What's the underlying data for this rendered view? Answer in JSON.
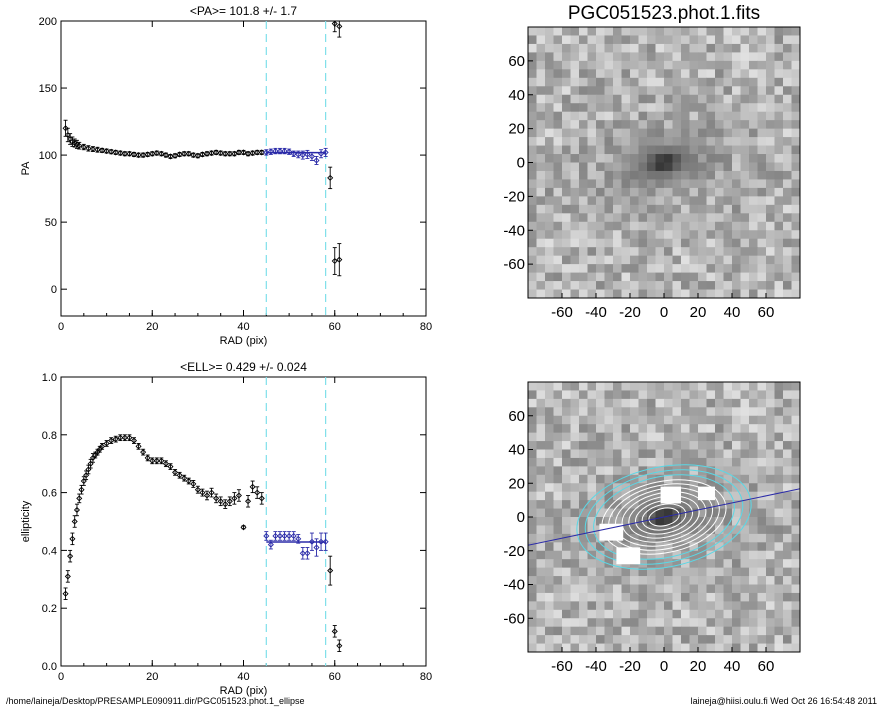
{
  "chart_data": [
    {
      "type": "scatter",
      "title": "<PA>= 101.8 +/-   1.7",
      "xlabel": "RAD (pix)",
      "ylabel": "PA",
      "xlim": [
        0,
        80
      ],
      "ylim": [
        -20,
        200
      ],
      "xticks": [
        0,
        20,
        40,
        60,
        80
      ],
      "yticks": [
        0,
        50,
        100,
        150,
        200
      ],
      "vlines": [
        45,
        58
      ],
      "fit": {
        "x0": 45,
        "x1": 58,
        "y": 101.8
      },
      "series": [
        {
          "color": "#000000",
          "x": [
            1,
            1.5,
            2,
            2.5,
            3,
            3.5,
            4,
            5,
            6,
            7,
            8,
            9,
            10,
            11,
            12,
            13,
            14,
            15,
            16,
            17,
            18,
            19,
            20,
            21,
            22,
            23,
            24,
            25,
            26,
            27,
            28,
            29,
            30,
            31,
            32,
            33,
            34,
            35,
            36,
            37,
            38,
            39,
            40,
            41,
            42,
            43,
            44
          ],
          "y": [
            120,
            115,
            112,
            110,
            109,
            108,
            107,
            106,
            105,
            104.5,
            104,
            103.5,
            103,
            102.5,
            102,
            101.5,
            101,
            101,
            100.5,
            100,
            100,
            100.5,
            101,
            101.5,
            101,
            100,
            99,
            99.5,
            100.5,
            101,
            101,
            100,
            99.5,
            100.5,
            101,
            101.5,
            102,
            101.5,
            101,
            101,
            101,
            102,
            102,
            101,
            101.5,
            102,
            102
          ],
          "err": [
            6,
            5,
            4,
            3.5,
            3,
            3,
            2.5,
            2,
            2,
            1.8,
            1.8,
            1.5,
            1.5,
            1.5,
            1.5,
            1.5,
            1.5,
            1.5,
            1.5,
            1.5,
            1.5,
            1.5,
            1.5,
            1.5,
            1.5,
            1.5,
            1.5,
            1.5,
            1.5,
            1.5,
            1.5,
            1.5,
            1.5,
            1.5,
            1.5,
            1.5,
            1.5,
            1.5,
            1.5,
            1.5,
            1.5,
            1.5,
            1.5,
            1.5,
            1.5,
            1.5,
            1.5
          ]
        },
        {
          "color": "#2a2aa8",
          "x": [
            45,
            46,
            47,
            48,
            49,
            50,
            51,
            52,
            53,
            54,
            55,
            56,
            57,
            58
          ],
          "y": [
            102,
            102.5,
            103,
            103,
            103,
            102.5,
            101,
            100.5,
            100,
            100.5,
            99,
            96,
            101,
            102
          ],
          "err": [
            2,
            2,
            2,
            2,
            2,
            2,
            2,
            2.5,
            3,
            3,
            3,
            3,
            3,
            3
          ]
        },
        {
          "color": "#000000",
          "x": [
            59,
            60,
            61
          ],
          "y": [
            83,
            21,
            22
          ],
          "err": [
            8,
            10,
            12
          ]
        },
        {
          "color": "#000000",
          "x": [
            60,
            61
          ],
          "y": [
            198,
            196
          ],
          "err": [
            6,
            8
          ]
        }
      ]
    },
    {
      "type": "image",
      "title": "PGC051523.phot.1.fits",
      "xlim": [
        -80,
        80
      ],
      "ylim": [
        -80,
        80
      ],
      "xticks": [
        -60,
        -40,
        -20,
        0,
        20,
        40,
        60
      ],
      "yticks": [
        -60,
        -40,
        -20,
        0,
        20,
        40,
        60
      ],
      "galaxy": {
        "pa_deg": 101.8,
        "ell": 0.429,
        "semimajor": 45
      }
    },
    {
      "type": "scatter",
      "title": "<ELL>= 0.429 +/-  0.024",
      "xlabel": "RAD (pix)",
      "ylabel": "ellipticity",
      "xlim": [
        0,
        80
      ],
      "ylim": [
        0,
        1
      ],
      "xticks": [
        0,
        20,
        40,
        60,
        80
      ],
      "yticks": [
        0.0,
        0.2,
        0.4,
        0.6,
        0.8,
        1.0
      ],
      "vlines": [
        45,
        58
      ],
      "fit": {
        "x0": 45,
        "x1": 58,
        "y": 0.429
      },
      "series": [
        {
          "color": "#000000",
          "x": [
            1,
            1.5,
            2,
            2.5,
            3,
            3.5,
            4,
            4.5,
            5,
            5.5,
            6,
            6.5,
            7,
            7.5,
            8,
            8.5,
            9,
            10,
            11,
            12,
            13,
            14,
            15,
            16,
            17,
            18,
            19,
            20,
            21,
            22,
            23,
            24,
            25,
            26,
            27,
            28,
            29,
            30,
            31,
            32,
            33,
            34,
            35,
            36,
            37,
            38,
            39,
            40,
            41,
            42,
            43,
            44
          ],
          "y": [
            0.25,
            0.31,
            0.38,
            0.44,
            0.5,
            0.54,
            0.58,
            0.61,
            0.64,
            0.66,
            0.68,
            0.7,
            0.72,
            0.73,
            0.74,
            0.75,
            0.76,
            0.77,
            0.78,
            0.785,
            0.79,
            0.79,
            0.79,
            0.78,
            0.76,
            0.74,
            0.72,
            0.71,
            0.71,
            0.71,
            0.7,
            0.69,
            0.67,
            0.66,
            0.65,
            0.64,
            0.63,
            0.61,
            0.6,
            0.59,
            0.6,
            0.58,
            0.57,
            0.56,
            0.57,
            0.58,
            0.59,
            0.48,
            0.57,
            0.62,
            0.6,
            0.58
          ],
          "err": [
            0.02,
            0.02,
            0.02,
            0.02,
            0.02,
            0.02,
            0.015,
            0.015,
            0.015,
            0.015,
            0.015,
            0.015,
            0.015,
            0.01,
            0.01,
            0.01,
            0.01,
            0.01,
            0.01,
            0.01,
            0.01,
            0.01,
            0.01,
            0.01,
            0.01,
            0.01,
            0.01,
            0.01,
            0.01,
            0.01,
            0.01,
            0.01,
            0.01,
            0.01,
            0.01,
            0.01,
            0.012,
            0.012,
            0.012,
            0.015,
            0.015,
            0.015,
            0.015,
            0.015,
            0.015,
            0.02,
            0.02,
            0.005,
            0.02,
            0.02,
            0.02,
            0.02
          ]
        },
        {
          "color": "#2a2aa8",
          "x": [
            45,
            46,
            47,
            48,
            49,
            50,
            51,
            52,
            53,
            54,
            55,
            56,
            57,
            58
          ],
          "y": [
            0.45,
            0.42,
            0.45,
            0.45,
            0.45,
            0.45,
            0.45,
            0.44,
            0.39,
            0.39,
            0.43,
            0.41,
            0.43,
            0.43
          ],
          "err": [
            0.015,
            0.015,
            0.015,
            0.015,
            0.015,
            0.015,
            0.015,
            0.015,
            0.02,
            0.02,
            0.03,
            0.03,
            0.03,
            0.03
          ]
        },
        {
          "color": "#000000",
          "x": [
            59,
            60,
            61
          ],
          "y": [
            0.33,
            0.12,
            0.07
          ],
          "err": [
            0.05,
            0.02,
            0.02
          ]
        }
      ]
    },
    {
      "type": "image",
      "title": "",
      "xlim": [
        -80,
        80
      ],
      "ylim": [
        -80,
        80
      ],
      "xticks": [
        -60,
        -40,
        -20,
        0,
        20,
        40,
        60
      ],
      "yticks": [
        -60,
        -40,
        -20,
        0,
        20,
        40,
        60
      ],
      "galaxy": {
        "pa_deg": 101.8,
        "ell": 0.429,
        "semimajor": 45
      },
      "overlay": {
        "ellipses": true,
        "major_axis_line": true,
        "line_color": "#2a2aa8",
        "ellipse_color": "#5ad8e6"
      }
    }
  ],
  "footer": {
    "left": "/home/laineja/Desktop/PRESAMPLE090911.dir/PGC051523.phot.1_ellipse",
    "right": "laineja@hiisi.oulu.fi  Wed Oct 26 16:54:48 2011"
  },
  "colors": {
    "vline": "#7fe0ea",
    "fit": "#2a2aa8",
    "mask": "#ffffff"
  }
}
